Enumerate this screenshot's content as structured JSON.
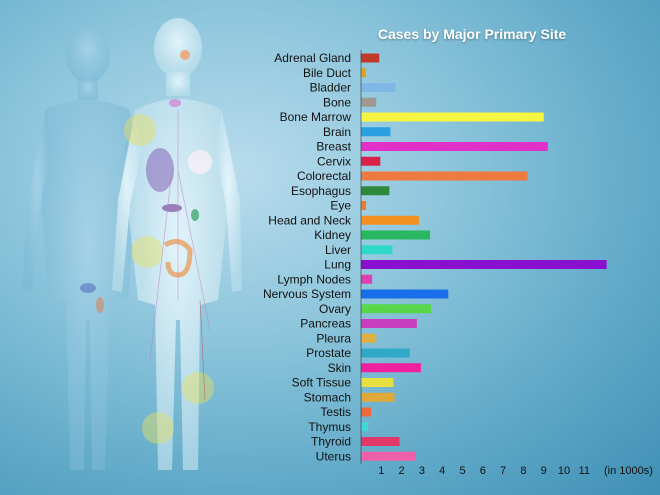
{
  "chart_data": {
    "type": "bar",
    "orientation": "horizontal",
    "title": "Cases by Major Primary Site",
    "xlabel": "",
    "x_unit_label": "(in 1000s)",
    "ylabel": "",
    "xlim": [
      0,
      12
    ],
    "x_ticks": [
      1,
      2,
      3,
      4,
      5,
      6,
      7,
      8,
      9,
      10,
      11
    ],
    "grid": false,
    "categories": [
      "Adrenal Gland",
      "Bile Duct",
      "Bladder",
      "Bone",
      "Bone Marrow",
      "Brain",
      "Breast",
      "Cervix",
      "Colorectal",
      "Esophagus",
      "Eye",
      "Head and Neck",
      "Kidney",
      "Liver",
      "Lung",
      "Lymph Nodes",
      "Nervous System",
      "Ovary",
      "Pancreas",
      "Pleura",
      "Prostate",
      "Skin",
      "Soft Tissue",
      "Stomach",
      "Testis",
      "Thymus",
      "Thyroid",
      "Uterus"
    ],
    "values": [
      0.9,
      0.25,
      1.7,
      0.75,
      9.0,
      1.45,
      9.2,
      0.95,
      8.2,
      1.4,
      0.25,
      2.85,
      3.4,
      1.55,
      12.1,
      0.55,
      4.3,
      3.45,
      2.75,
      0.75,
      2.4,
      2.95,
      1.6,
      1.65,
      0.5,
      0.35,
      1.9,
      2.7
    ],
    "colors": [
      "#c0392b",
      "#e0a020",
      "#7fb8e8",
      "#a09890",
      "#f5f542",
      "#2aa0e0",
      "#e030c8",
      "#d8204a",
      "#ee7a40",
      "#2e8a3a",
      "#ee7a30",
      "#f39020",
      "#28b860",
      "#30d8c8",
      "#8a10d0",
      "#e040b0",
      "#1a6ee8",
      "#58d848",
      "#c83cc0",
      "#e0b040",
      "#30a8c8",
      "#f020a0",
      "#e8e040",
      "#e0a838",
      "#ee6a3a",
      "#40d8d8",
      "#e0386a",
      "#f060a8"
    ]
  }
}
